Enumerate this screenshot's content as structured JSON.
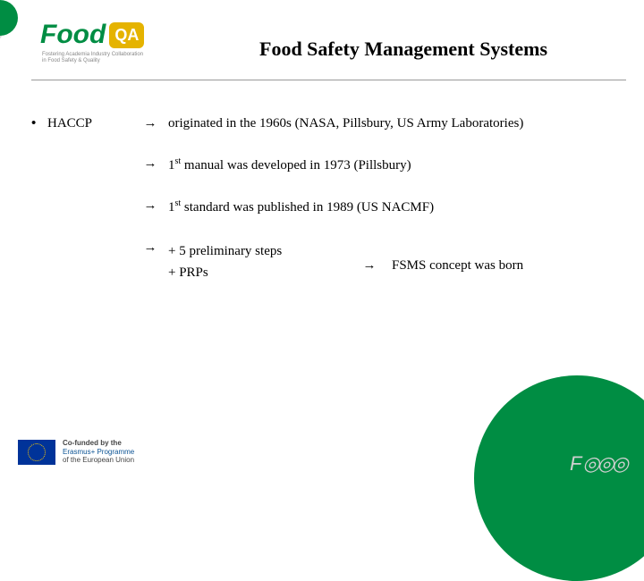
{
  "colors": {
    "accent_green": "#008d43",
    "accent_yellow": "#e5b300",
    "eu_blue": "#003399",
    "text": "#000000",
    "watermark": "#d0d0d0"
  },
  "logo": {
    "word": "Food",
    "badge": "QA",
    "subline1": "Fostering Academia Industry Collaboration",
    "subline2": "in Food Safety & Quality"
  },
  "title": "Food Safety Management Systems",
  "bullet": "•",
  "arrow": "→",
  "item": {
    "label": "HACCP",
    "lines": [
      "originated in the 1960s (NASA, Pillsbury, US Army  Laboratories)",
      "1st manual was developed in 1973 (Pillsbury)",
      "1st standard was published in 1989 (US NACMF)"
    ],
    "multi": {
      "left1": " + 5 preliminary steps",
      "left2": "+ PRPs",
      "right": "FSMS concept was born"
    }
  },
  "eu": {
    "line1": "Co-funded by the",
    "line2": "Erasmus+ Programme",
    "line3": "of the European Union"
  },
  "watermark": {
    "f": "F",
    "circles": "◎◎◎"
  }
}
